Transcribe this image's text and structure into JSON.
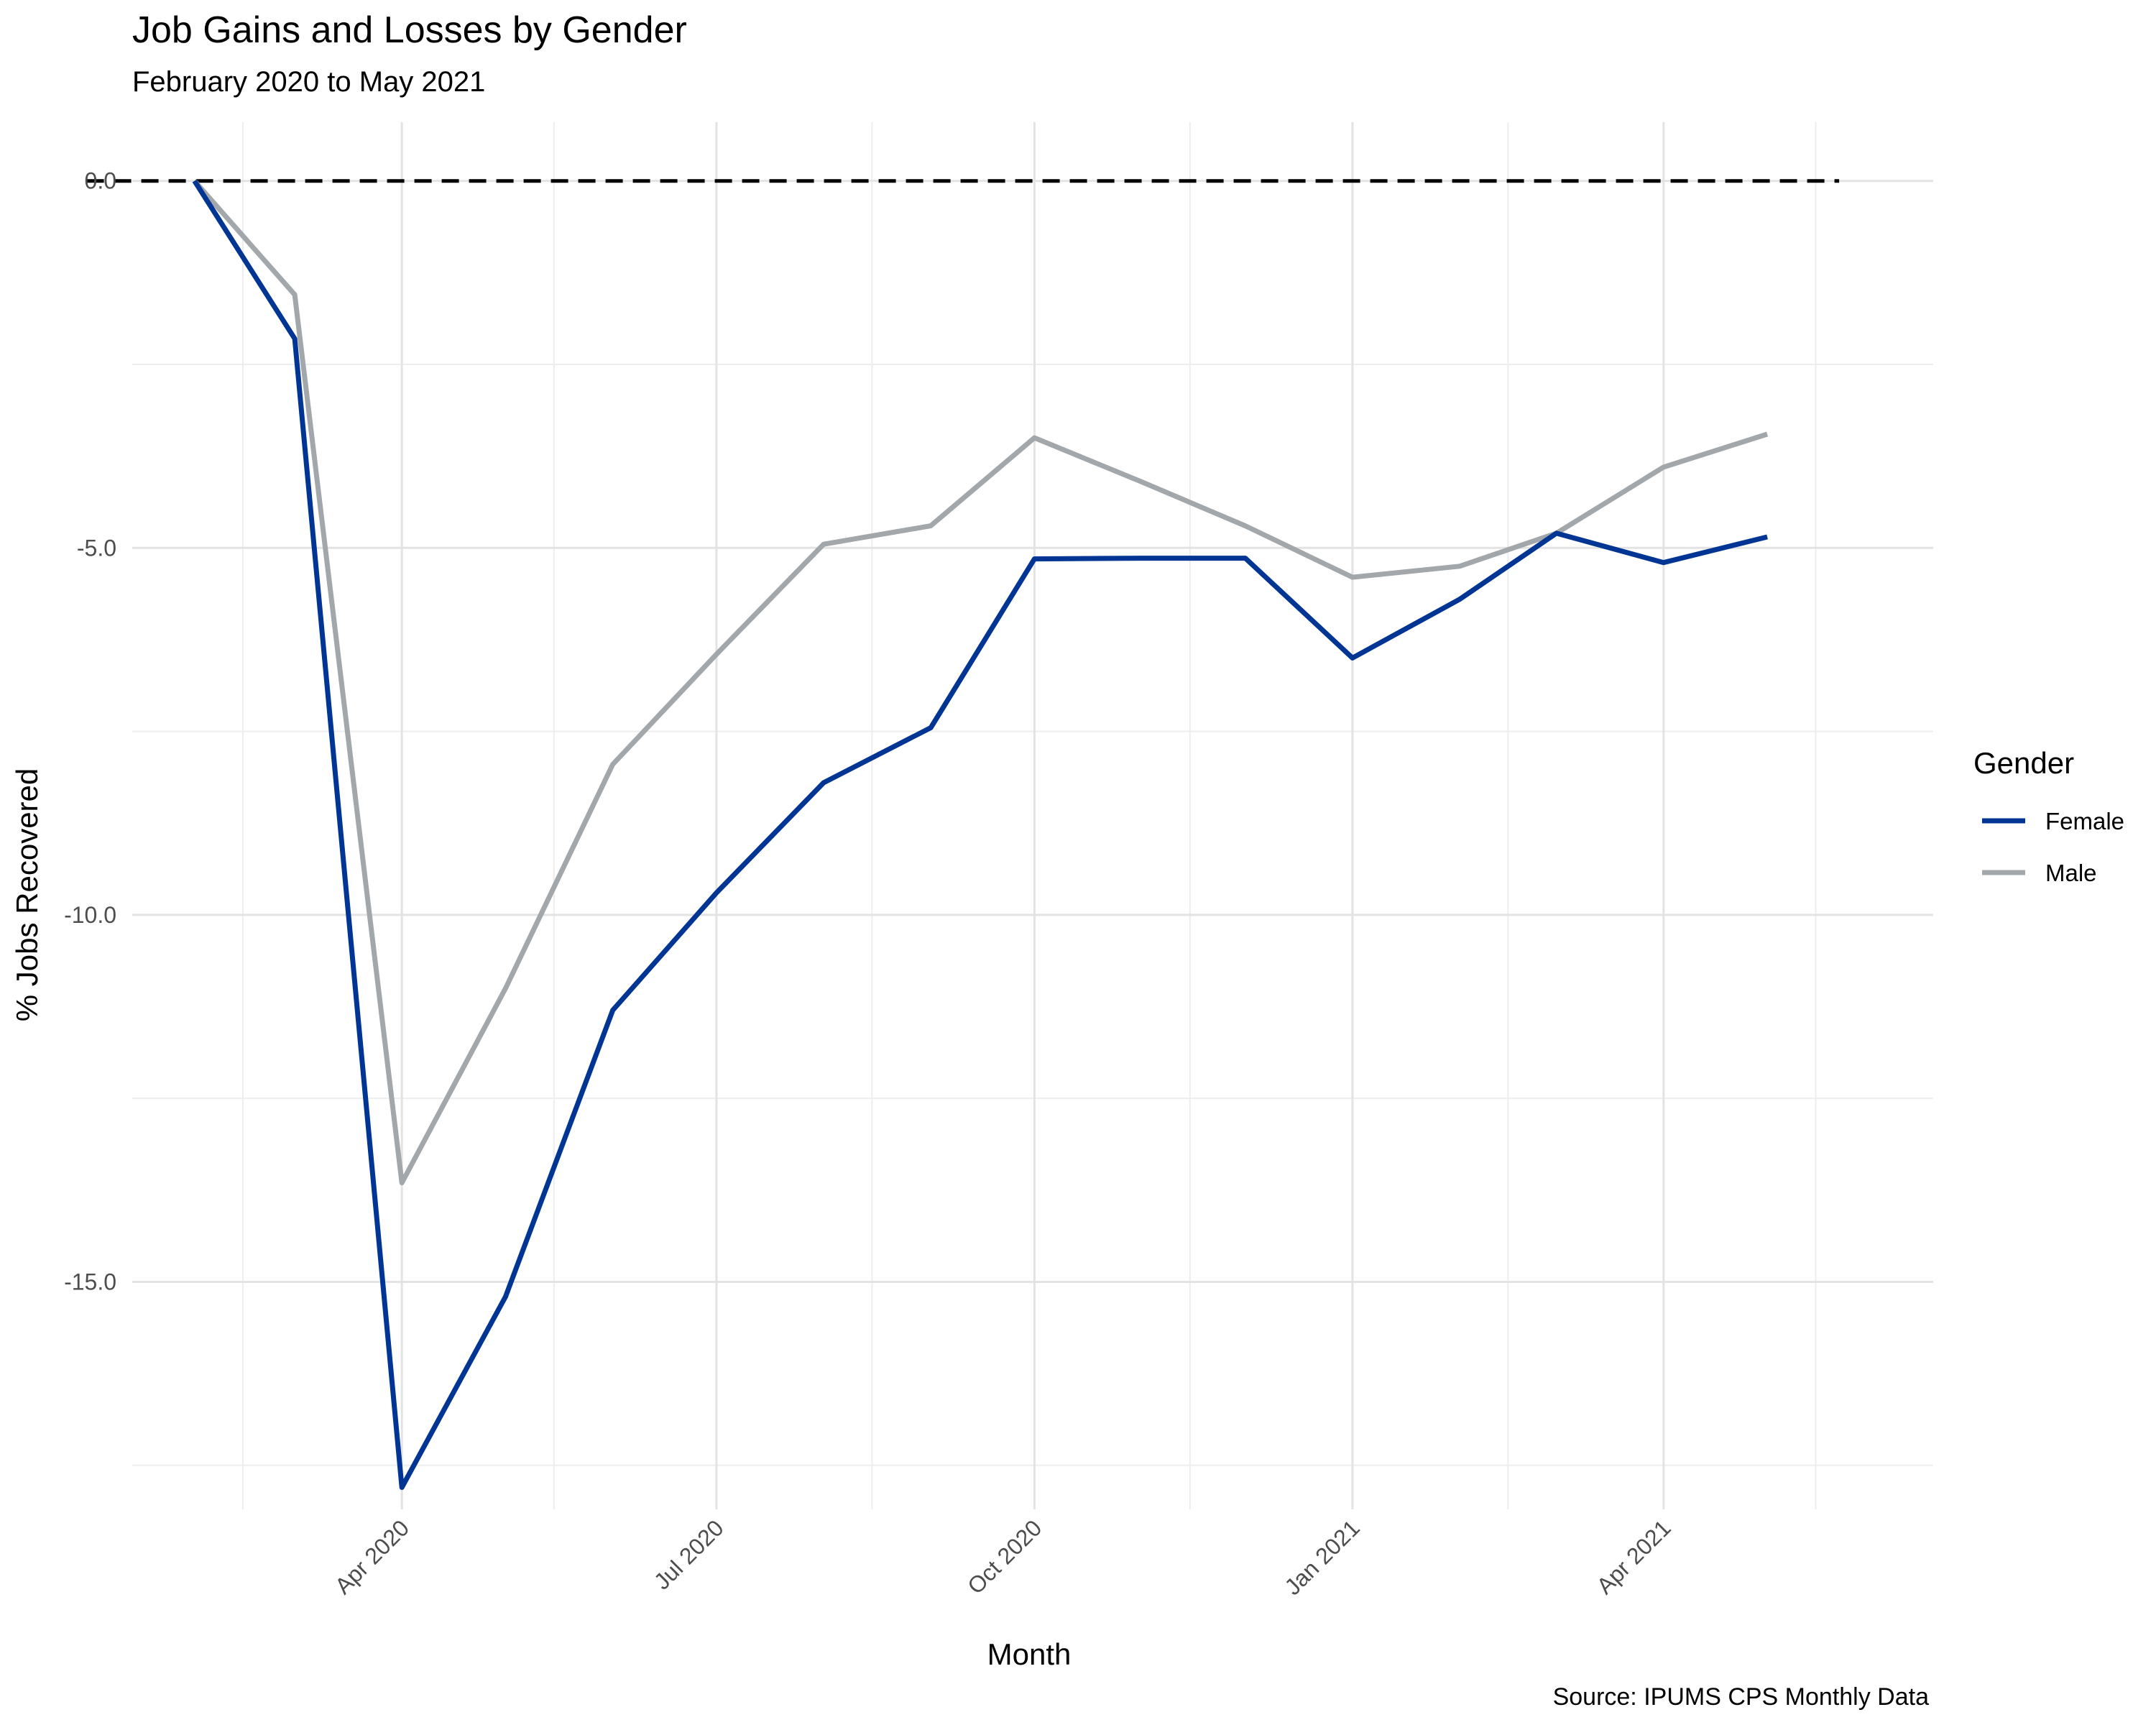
{
  "chart_data": {
    "type": "line",
    "title": "Job Gains and Losses by Gender",
    "subtitle": "February 2020 to May 2021",
    "caption": "Source: IPUMS CPS Monthly Data",
    "xlabel": "Month",
    "ylabel": "% Jobs Recovered",
    "x": [
      "2020-02",
      "2020-03",
      "2020-04",
      "2020-05",
      "2020-06",
      "2020-07",
      "2020-08",
      "2020-09",
      "2020-10",
      "2020-11",
      "2020-12",
      "2021-01",
      "2021-02",
      "2021-03",
      "2021-04",
      "2021-05"
    ],
    "x_ticks": [
      {
        "date": "2020-04",
        "label": "Apr 2020"
      },
      {
        "date": "2020-07",
        "label": "Jul 2020"
      },
      {
        "date": "2020-10",
        "label": "Oct 2020"
      },
      {
        "date": "2021-01",
        "label": "Jan 2021"
      },
      {
        "date": "2021-04",
        "label": "Apr 2021"
      }
    ],
    "x_minor_ticks": [
      "2020-02-15",
      "2020-05-15",
      "2020-08-15",
      "2020-11-15",
      "2021-02-15",
      "2021-05-15"
    ],
    "y_ticks": [
      {
        "value": 0,
        "label": "0.0"
      },
      {
        "value": -5,
        "label": "-5.0"
      },
      {
        "value": -10,
        "label": "-10.0"
      },
      {
        "value": -15,
        "label": "-15.0"
      }
    ],
    "ylim": [
      -18.1,
      0.8
    ],
    "xlim": [
      "2020-01-14",
      "2021-06-18"
    ],
    "reference_line": {
      "y": 0,
      "style": "dashed",
      "color": "#000000"
    },
    "grid": true,
    "legend": {
      "title": "Gender",
      "position": "right"
    },
    "series": [
      {
        "name": "Female",
        "color": "#003594",
        "values": [
          0,
          -2.15,
          -17.8,
          -15.2,
          -11.3,
          -9.7,
          -8.2,
          -7.45,
          -5.15,
          -5.14,
          -5.14,
          -6.5,
          -5.7,
          -4.8,
          -5.2,
          -4.85
        ]
      },
      {
        "name": "Male",
        "color": "#A2A7AB",
        "values": [
          0,
          -1.55,
          -13.65,
          -11.0,
          -7.95,
          -6.45,
          -4.95,
          -4.7,
          -3.5,
          -4.1,
          -4.7,
          -5.4,
          -5.25,
          -4.8,
          -3.9,
          -3.45
        ]
      }
    ]
  }
}
